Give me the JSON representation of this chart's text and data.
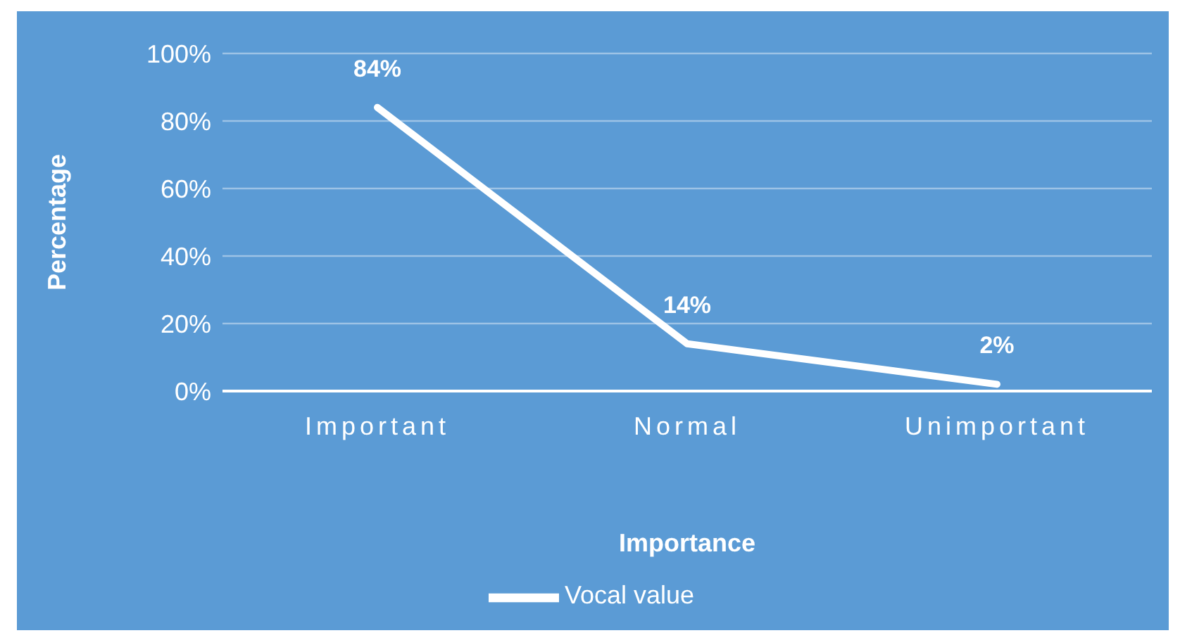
{
  "chart_data": {
    "type": "line",
    "xlabel": "Importance",
    "ylabel": "Percentage",
    "categories": [
      "Important",
      "Normal",
      "Unimportant"
    ],
    "series": [
      {
        "name": "Vocal value",
        "color": "#ffffff",
        "values": [
          84,
          14,
          2
        ],
        "value_labels": [
          "84%",
          "14%",
          "2%"
        ]
      }
    ],
    "ylim": [
      0,
      100
    ],
    "yticks": [
      {
        "value": 0,
        "label": "0%"
      },
      {
        "value": 20,
        "label": "20%"
      },
      {
        "value": 40,
        "label": "40%"
      },
      {
        "value": 60,
        "label": "60%"
      },
      {
        "value": 80,
        "label": "80%"
      },
      {
        "value": 100,
        "label": "100%"
      }
    ],
    "grid": "y",
    "legend": "bottom",
    "marker": "none",
    "line_style": "solid"
  }
}
